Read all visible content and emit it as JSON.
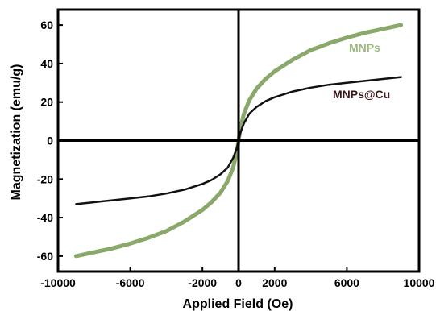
{
  "chart_data": {
    "type": "line",
    "title": "",
    "xlabel": "Applied Field (Oe)",
    "ylabel": "Magnetization (emu/g)",
    "xlim": [
      -10000,
      10000
    ],
    "ylim": [
      -68,
      68
    ],
    "xticks": [
      -10000,
      -6000,
      -2000,
      0,
      2000,
      6000,
      10000
    ],
    "yticks": [
      -60,
      -40,
      -20,
      0,
      20,
      40,
      60
    ],
    "grid": false,
    "legend": "inline labels",
    "series": [
      {
        "name": "MNPs",
        "color": "#8aa86a",
        "label_color": "#9db87f",
        "x": [
          -9000,
          -8000,
          -7000,
          -6000,
          -5000,
          -4000,
          -3000,
          -2000,
          -1500,
          -1000,
          -600,
          -300,
          -100,
          0,
          100,
          300,
          600,
          1000,
          1500,
          2000,
          3000,
          4000,
          5000,
          6000,
          7000,
          8000,
          9000
        ],
        "y": [
          -60,
          -58,
          -56,
          -53.5,
          -50.5,
          -47,
          -42,
          -36,
          -32,
          -27,
          -21,
          -14,
          -6,
          0,
          6,
          14,
          21,
          27,
          32,
          36,
          42,
          47,
          50.5,
          53.5,
          56,
          58,
          60
        ]
      },
      {
        "name": "MNPs@Cu",
        "color": "#111111",
        "label_color": "#3a1515",
        "x": [
          -9000,
          -8000,
          -7000,
          -6000,
          -5000,
          -4000,
          -3000,
          -2000,
          -1500,
          -1000,
          -600,
          -300,
          -100,
          0,
          100,
          300,
          600,
          1000,
          1500,
          2000,
          3000,
          4000,
          5000,
          6000,
          7000,
          8000,
          9000
        ],
        "y": [
          -33,
          -32,
          -31,
          -30,
          -29,
          -27.5,
          -25.5,
          -22.5,
          -20.5,
          -17.5,
          -14,
          -9,
          -4,
          0,
          4,
          9,
          14,
          17.5,
          20.5,
          22.5,
          25.5,
          27.5,
          29,
          30,
          31,
          32,
          33
        ]
      }
    ]
  }
}
